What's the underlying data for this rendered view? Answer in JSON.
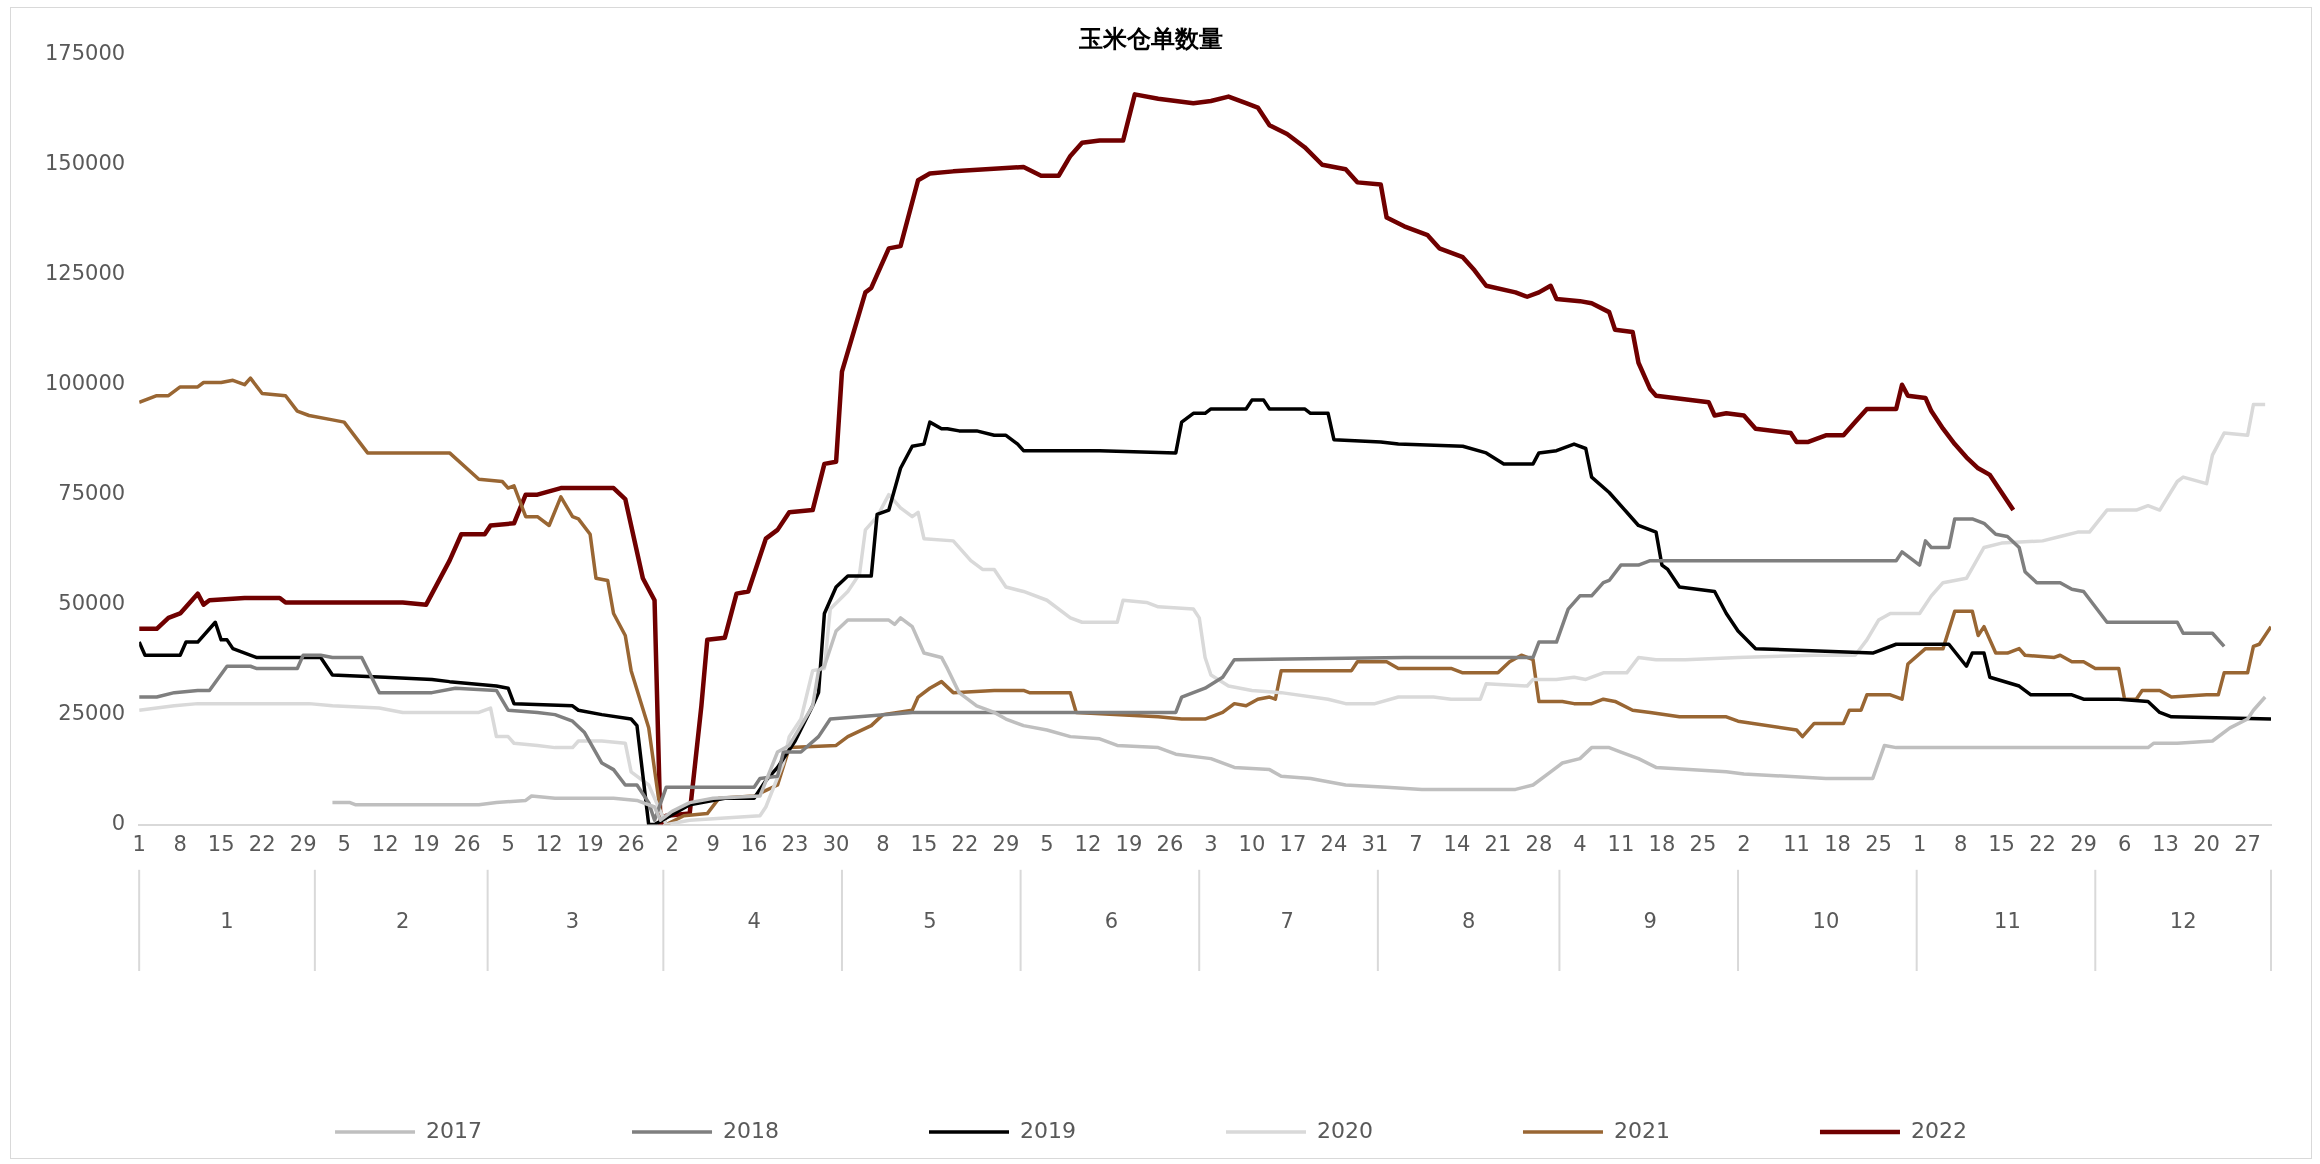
{
  "chart_data": {
    "type": "line",
    "title": "玉米仓单数量",
    "legend": "bottom",
    "grid": false,
    "marker": "none",
    "line_style": "solid",
    "ylim": [
      0,
      175000
    ],
    "yticks": [
      0,
      25000,
      50000,
      75000,
      100000,
      125000,
      150000,
      175000
    ],
    "xlim": [
      "--01-01",
      "--12-31"
    ],
    "xticks": [
      {
        "value": "--01-01",
        "label": "1"
      },
      {
        "value": "--01-08",
        "label": "8"
      },
      {
        "value": "--01-15",
        "label": "15"
      },
      {
        "value": "--01-22",
        "label": "22"
      },
      {
        "value": "--01-29",
        "label": "29"
      },
      {
        "value": "--02-05",
        "label": "5"
      },
      {
        "value": "--02-12",
        "label": "12"
      },
      {
        "value": "--02-19",
        "label": "19"
      },
      {
        "value": "--02-26",
        "label": "26"
      },
      {
        "value": "--03-05",
        "label": "5"
      },
      {
        "value": "--03-12",
        "label": "12"
      },
      {
        "value": "--03-19",
        "label": "19"
      },
      {
        "value": "--03-26",
        "label": "26"
      },
      {
        "value": "--04-02",
        "label": "2"
      },
      {
        "value": "--04-09",
        "label": "9"
      },
      {
        "value": "--04-16",
        "label": "16"
      },
      {
        "value": "--04-23",
        "label": "23"
      },
      {
        "value": "--04-30",
        "label": "30"
      },
      {
        "value": "--05-08",
        "label": "8"
      },
      {
        "value": "--05-15",
        "label": "15"
      },
      {
        "value": "--05-22",
        "label": "22"
      },
      {
        "value": "--05-29",
        "label": "29"
      },
      {
        "value": "--06-05",
        "label": "5"
      },
      {
        "value": "--06-12",
        "label": "12"
      },
      {
        "value": "--06-19",
        "label": "19"
      },
      {
        "value": "--06-26",
        "label": "26"
      },
      {
        "value": "--07-03",
        "label": "3"
      },
      {
        "value": "--07-10",
        "label": "10"
      },
      {
        "value": "--07-17",
        "label": "17"
      },
      {
        "value": "--07-24",
        "label": "24"
      },
      {
        "value": "--07-31",
        "label": "31"
      },
      {
        "value": "--08-07",
        "label": "7"
      },
      {
        "value": "--08-14",
        "label": "14"
      },
      {
        "value": "--08-21",
        "label": "21"
      },
      {
        "value": "--08-28",
        "label": "28"
      },
      {
        "value": "--09-04",
        "label": "4"
      },
      {
        "value": "--09-11",
        "label": "11"
      },
      {
        "value": "--09-18",
        "label": "18"
      },
      {
        "value": "--09-25",
        "label": "25"
      },
      {
        "value": "--10-02",
        "label": "2"
      },
      {
        "value": "--10-11",
        "label": "11"
      },
      {
        "value": "--10-18",
        "label": "18"
      },
      {
        "value": "--10-25",
        "label": "25"
      },
      {
        "value": "--11-01",
        "label": "1"
      },
      {
        "value": "--11-08",
        "label": "8"
      },
      {
        "value": "--11-15",
        "label": "15"
      },
      {
        "value": "--11-22",
        "label": "22"
      },
      {
        "value": "--11-29",
        "label": "29"
      },
      {
        "value": "--12-06",
        "label": "6"
      },
      {
        "value": "--12-13",
        "label": "13"
      },
      {
        "value": "--12-20",
        "label": "20"
      },
      {
        "value": "--12-27",
        "label": "27"
      }
    ],
    "x2lim": [
      "--01-01",
      "--12-31"
    ],
    "x2ticks": [
      {
        "value": "--01-16",
        "label": "1"
      },
      {
        "value": "--02-15",
        "label": "2"
      },
      {
        "value": "--03-16",
        "label": "3"
      },
      {
        "value": "--04-16",
        "label": "4"
      },
      {
        "value": "--05-16",
        "label": "5"
      },
      {
        "value": "--06-16",
        "label": "6"
      },
      {
        "value": "--07-16",
        "label": "7"
      },
      {
        "value": "--08-16",
        "label": "8"
      },
      {
        "value": "--09-16",
        "label": "9"
      },
      {
        "value": "--10-16",
        "label": "10"
      },
      {
        "value": "--11-16",
        "label": "11"
      },
      {
        "value": "--12-16",
        "label": "12"
      }
    ],
    "series": [
      {
        "name": "2017",
        "color": "#bfbfbf",
        "x": [
          "--02-03",
          "--02-06",
          "--02-07",
          "--02-28",
          "--03-03",
          "--03-08",
          "--03-09",
          "--03-13",
          "--03-23",
          "--03-27",
          "--03-30",
          "--03-31",
          "--04-02",
          "--04-05",
          "--04-09",
          "--04-17",
          "--04-20",
          "--04-22",
          "--04-26",
          "--04-27",
          "--04-28",
          "--04-30",
          "--05-02",
          "--05-09",
          "--05-10",
          "--05-11",
          "--05-13",
          "--05-15",
          "--05-18",
          "--05-19",
          "--05-21",
          "--05-24",
          "--05-27",
          "--05-29",
          "--06-01",
          "--06-05",
          "--06-09",
          "--06-14",
          "--06-17",
          "--06-24",
          "--06-27",
          "--07-03",
          "--07-07",
          "--07-13",
          "--07-15",
          "--07-20",
          "--07-26",
          "--08-02",
          "--08-08",
          "--08-24",
          "--08-27",
          "--08-30",
          "--09-01",
          "--09-04",
          "--09-06",
          "--09-09",
          "--09-11",
          "--09-14",
          "--09-17",
          "--09-29",
          "--10-02",
          "--10-16",
          "--10-24",
          "--10-26",
          "--10-28",
          "--12-10",
          "--12-11",
          "--12-15",
          "--12-21",
          "--12-24",
          "--12-27",
          "--12-28",
          "--12-30"
        ],
        "values": [
          5000,
          5000,
          4500,
          4500,
          5000,
          5500,
          6500,
          6000,
          6000,
          5500,
          4000,
          1000,
          3000,
          5000,
          6000,
          6500,
          16500,
          18000,
          27000,
          35000,
          36000,
          44000,
          46500,
          46500,
          45500,
          47000,
          45000,
          39000,
          38000,
          35500,
          30000,
          27000,
          25500,
          24000,
          22500,
          21500,
          20000,
          19500,
          18000,
          17500,
          16000,
          15000,
          13000,
          12500,
          11000,
          10500,
          9000,
          8500,
          8000,
          8000,
          9000,
          12000,
          14000,
          15000,
          17500,
          17500,
          16500,
          15000,
          13000,
          12000,
          11500,
          10500,
          10500,
          18000,
          17500,
          17500,
          18500,
          18500,
          19000,
          22000,
          24000,
          26000,
          29000
        ]
      },
      {
        "name": "2018",
        "color": "#7f7f7f",
        "x": [
          "--01-01",
          "--01-04",
          "--01-07",
          "--01-11",
          "--01-13",
          "--01-16",
          "--01-20",
          "--01-21",
          "--01-28",
          "--01-29",
          "--02-01",
          "--02-03",
          "--02-08",
          "--02-11",
          "--02-20",
          "--02-24",
          "--03-03",
          "--03-05",
          "--03-10",
          "--03-13",
          "--03-16",
          "--03-18",
          "--03-21",
          "--03-23",
          "--03-25",
          "--03-27",
          "--03-29",
          "--03-30",
          "--04-01",
          "--04-16",
          "--04-17",
          "--04-20",
          "--04-21",
          "--04-24",
          "--04-27",
          "--04-29",
          "--05-13",
          "--05-29",
          "--06-27",
          "--06-28",
          "--07-02",
          "--07-05",
          "--07-07",
          "--08-05",
          "--08-27",
          "--08-28",
          "--08-31",
          "--09-02",
          "--09-04",
          "--09-06",
          "--09-08",
          "--09-09",
          "--09-11",
          "--09-14",
          "--09-16",
          "--10-28",
          "--10-29",
          "--11-01",
          "--11-02",
          "--11-03",
          "--11-06",
          "--11-07",
          "--11-10",
          "--11-12",
          "--11-14",
          "--11-16",
          "--11-18",
          "--11-19",
          "--11-21",
          "--11-25",
          "--11-27",
          "--11-29",
          "--12-03",
          "--12-15",
          "--12-16",
          "--12-21",
          "--12-23"
        ],
        "values": [
          29000,
          29000,
          30000,
          30500,
          30500,
          36000,
          36000,
          35500,
          35500,
          38500,
          38500,
          38000,
          38000,
          30000,
          30000,
          31000,
          30500,
          26000,
          25500,
          25000,
          23500,
          21000,
          14000,
          12500,
          9000,
          9000,
          5000,
          1000,
          8500,
          8500,
          10500,
          11000,
          16500,
          16500,
          20000,
          24000,
          25500,
          25500,
          25500,
          29000,
          31000,
          33500,
          37500,
          38000,
          38000,
          41500,
          41500,
          49000,
          52000,
          52000,
          55000,
          55500,
          59000,
          59000,
          60000,
          60000,
          62000,
          59000,
          64500,
          63000,
          63000,
          69500,
          69500,
          68500,
          66000,
          65500,
          63000,
          57500,
          55000,
          55000,
          53500,
          53000,
          46000,
          46000,
          43500,
          43500,
          40500
        ]
      },
      {
        "name": "2019",
        "color": "#000000",
        "x": [
          "--01-01",
          "--01-02",
          "--01-04",
          "--01-08",
          "--01-09",
          "--01-11",
          "--01-14",
          "--01-15",
          "--01-16",
          "--01-17",
          "--01-21",
          "--02-01",
          "--02-03",
          "--02-12",
          "--02-20",
          "--02-23",
          "--03-03",
          "--03-05",
          "--03-06",
          "--03-16",
          "--03-17",
          "--03-21",
          "--03-26",
          "--03-27",
          "--03-29",
          "--03-30",
          "--04-05",
          "--04-11",
          "--04-16",
          "--04-18",
          "--04-20",
          "--04-23",
          "--04-26",
          "--04-27",
          "--04-28",
          "--04-30",
          "--05-02",
          "--05-06",
          "--05-07",
          "--05-09",
          "--05-11",
          "--05-13",
          "--05-15",
          "--05-16",
          "--05-18",
          "--05-19",
          "--05-21",
          "--05-24",
          "--05-27",
          "--05-29",
          "--05-31",
          "--06-01",
          "--06-14",
          "--06-27",
          "--06-28",
          "--06-30",
          "--07-02",
          "--07-03",
          "--07-09",
          "--07-10",
          "--07-12",
          "--07-13",
          "--07-19",
          "--07-20",
          "--07-23",
          "--07-24",
          "--08-01",
          "--08-04",
          "--08-15",
          "--08-19",
          "--08-22",
          "--08-27",
          "--08-28",
          "--08-31",
          "--09-03",
          "--09-05",
          "--09-06",
          "--09-09",
          "--09-12",
          "--09-14",
          "--09-17",
          "--09-18",
          "--09-19",
          "--09-21",
          "--09-27",
          "--09-29",
          "--10-01",
          "--10-04",
          "--10-24",
          "--10-28",
          "--11-06",
          "--11-09",
          "--11-10",
          "--11-12",
          "--11-13",
          "--11-18",
          "--11-20",
          "--11-27",
          "--11-29",
          "--12-05",
          "--12-10",
          "--12-12",
          "--12-14",
          "--12-31"
        ],
        "values": [
          41500,
          38500,
          38500,
          38500,
          41500,
          41500,
          46000,
          42000,
          42000,
          40000,
          38000,
          38000,
          34000,
          33500,
          33000,
          32500,
          31500,
          31000,
          27500,
          27000,
          26000,
          25000,
          24000,
          22500,
          0,
          0,
          4500,
          6000,
          6000,
          10000,
          13000,
          19000,
          27000,
          30000,
          48000,
          54000,
          56500,
          56500,
          70500,
          71500,
          81000,
          86000,
          86500,
          91500,
          90000,
          90000,
          89500,
          89500,
          88500,
          88500,
          86500,
          85000,
          85000,
          84500,
          91500,
          93500,
          93500,
          94500,
          94500,
          96500,
          96500,
          94500,
          94500,
          93500,
          93500,
          87500,
          87000,
          86500,
          86000,
          84500,
          82000,
          82000,
          84500,
          85000,
          86500,
          85500,
          79000,
          75500,
          71000,
          68000,
          66500,
          59000,
          58000,
          54000,
          53000,
          48000,
          44000,
          40000,
          39000,
          41000,
          41000,
          36000,
          39000,
          39000,
          33500,
          31500,
          29500,
          29500,
          28500,
          28500,
          28000,
          25500,
          24500,
          24000
        ]
      },
      {
        "name": "2020",
        "color": "#d9d9d9",
        "x": [
          "--01-01",
          "--01-04",
          "--01-07",
          "--01-11",
          "--01-30",
          "--02-03",
          "--02-11",
          "--02-15",
          "--02-28",
          "--03-02",
          "--03-03",
          "--03-05",
          "--03-06",
          "--03-10",
          "--03-13",
          "--03-16",
          "--03-17",
          "--03-21",
          "--03-25",
          "--03-26",
          "--03-29",
          "--03-31",
          "--04-01",
          "--04-05",
          "--04-17",
          "--04-18",
          "--04-21",
          "--04-22",
          "--04-24",
          "--04-26",
          "--04-28",
          "--04-29",
          "--05-02",
          "--05-04",
          "--05-05",
          "--05-07",
          "--05-09",
          "--05-11",
          "--05-13",
          "--05-14",
          "--05-15",
          "--05-20",
          "--05-23",
          "--05-25",
          "--05-27",
          "--05-29",
          "--06-01",
          "--06-05",
          "--06-09",
          "--06-11",
          "--06-17",
          "--06-18",
          "--06-22",
          "--06-24",
          "--06-30",
          "--07-01",
          "--07-02",
          "--07-03",
          "--07-06",
          "--07-10",
          "--07-15",
          "--07-23",
          "--07-26",
          "--07-31",
          "--08-04",
          "--08-10",
          "--08-13",
          "--08-18",
          "--08-19",
          "--08-26",
          "--08-27",
          "--08-31",
          "--09-03",
          "--09-05",
          "--09-08",
          "--09-12",
          "--09-14",
          "--09-17",
          "--09-22",
          "--10-01",
          "--10-14",
          "--10-21",
          "--10-23",
          "--10-25",
          "--10-27",
          "--11-01",
          "--11-03",
          "--11-05",
          "--11-09",
          "--11-12",
          "--11-15",
          "--11-22",
          "--11-25",
          "--11-28",
          "--11-30",
          "--12-03",
          "--12-08",
          "--12-10",
          "--12-12",
          "--12-15",
          "--12-16",
          "--12-20",
          "--12-21",
          "--12-23",
          "--12-27",
          "--12-28",
          "--12-30"
        ],
        "values": [
          26000,
          26500,
          27000,
          27500,
          27500,
          27000,
          26500,
          25500,
          25500,
          26500,
          20000,
          20000,
          18500,
          18000,
          17500,
          17500,
          19000,
          19000,
          18500,
          12000,
          9000,
          3000,
          0,
          1000,
          2000,
          4000,
          14000,
          20000,
          24000,
          35000,
          35500,
          49000,
          53000,
          57000,
          67000,
          70000,
          75000,
          72000,
          70000,
          71000,
          65000,
          64500,
          60000,
          58000,
          58000,
          54000,
          53000,
          51000,
          47000,
          46000,
          46000,
          51000,
          50500,
          49500,
          49000,
          47000,
          38000,
          34000,
          31500,
          30500,
          30000,
          28500,
          27500,
          27500,
          29000,
          29000,
          28500,
          28500,
          32000,
          31500,
          33000,
          33000,
          33500,
          33000,
          34500,
          34500,
          38000,
          37500,
          37500,
          38000,
          38500,
          38500,
          42000,
          46500,
          48000,
          48000,
          52000,
          55000,
          56000,
          63000,
          64000,
          64500,
          65500,
          66500,
          66500,
          71500,
          71500,
          72500,
          71500,
          78000,
          79000,
          77500,
          84000,
          89000,
          88500,
          95500,
          95500
        ]
      },
      {
        "name": "2021",
        "color": "#996633",
        "x": [
          "--01-01",
          "--01-04",
          "--01-06",
          "--01-08",
          "--01-11",
          "--01-12",
          "--01-15",
          "--01-17",
          "--01-19",
          "--01-20",
          "--01-22",
          "--01-26",
          "--01-28",
          "--01-30",
          "--02-03",
          "--02-05",
          "--02-09",
          "--02-23",
          "--02-28",
          "--03-04",
          "--03-05",
          "--03-06",
          "--03-08",
          "--03-10",
          "--03-12",
          "--03-14",
          "--03-16",
          "--03-17",
          "--03-19",
          "--03-20",
          "--03-22",
          "--03-23",
          "--03-25",
          "--03-26",
          "--03-29",
          "--03-31",
          "--04-01",
          "--04-04",
          "--04-08",
          "--04-10",
          "--04-16",
          "--04-20",
          "--04-22",
          "--04-30",
          "--05-02",
          "--05-06",
          "--05-08",
          "--05-13",
          "--05-14",
          "--05-16",
          "--05-18",
          "--05-20",
          "--05-27",
          "--06-01",
          "--06-02",
          "--06-09",
          "--06-10",
          "--06-24",
          "--06-28",
          "--07-02",
          "--07-05",
          "--07-07",
          "--07-09",
          "--07-11",
          "--07-13",
          "--07-14",
          "--07-15",
          "--07-22",
          "--07-27",
          "--07-28",
          "--08-02",
          "--08-04",
          "--08-13",
          "--08-15",
          "--08-21",
          "--08-23",
          "--08-25",
          "--08-27",
          "--08-28",
          "--09-01",
          "--09-03",
          "--09-06",
          "--09-08",
          "--09-10",
          "--09-13",
          "--09-16",
          "--09-21",
          "--09-29",
          "--10-01",
          "--10-11",
          "--10-12",
          "--10-14",
          "--10-19",
          "--10-20",
          "--10-22",
          "--10-23",
          "--10-27",
          "--10-29",
          "--10-30",
          "--11-02",
          "--11-05",
          "--11-07",
          "--11-10",
          "--11-11",
          "--11-12",
          "--11-14",
          "--11-16",
          "--11-18",
          "--11-19",
          "--11-24",
          "--11-25",
          "--11-27",
          "--11-29",
          "--12-01",
          "--12-05",
          "--12-06",
          "--12-08",
          "--12-09",
          "--12-12",
          "--12-14",
          "--12-20",
          "--12-22",
          "--12-23",
          "--12-27",
          "--12-28",
          "--12-29",
          "--12-31"
        ],
        "values": [
          96000,
          97500,
          97500,
          99500,
          99500,
          100500,
          100500,
          101000,
          100000,
          101500,
          98000,
          97500,
          94000,
          93000,
          92000,
          91500,
          84500,
          84500,
          78500,
          78000,
          76500,
          77000,
          70000,
          70000,
          68000,
          74500,
          70000,
          69500,
          66000,
          56000,
          55500,
          48000,
          43000,
          35000,
          22000,
          3000,
          0,
          2000,
          2500,
          6000,
          6500,
          9000,
          17500,
          18000,
          20000,
          22500,
          25000,
          26000,
          29000,
          31000,
          32500,
          30000,
          30500,
          30500,
          30000,
          30000,
          25500,
          24500,
          24000,
          24000,
          25500,
          27500,
          27000,
          28500,
          29000,
          28500,
          35000,
          35000,
          35000,
          37000,
          37000,
          35500,
          35500,
          34500,
          34500,
          37000,
          38500,
          37500,
          28000,
          28000,
          27500,
          27500,
          28500,
          28000,
          26000,
          25500,
          24500,
          24500,
          23500,
          21500,
          20000,
          23000,
          23000,
          26000,
          26000,
          29500,
          29500,
          28500,
          36500,
          40000,
          40000,
          48500,
          48500,
          43000,
          45000,
          39000,
          39000,
          40000,
          38500,
          38000,
          38500,
          37000,
          37000,
          35500,
          35500,
          28500,
          28500,
          30500,
          30500,
          29000,
          29500,
          29500,
          34500,
          34500,
          40500,
          41000,
          45000
        ]
      },
      {
        "name": "2022",
        "color": "#700000",
        "x": [
          "--01-01",
          "--01-04",
          "--01-06",
          "--01-08",
          "--01-11",
          "--01-12",
          "--01-13",
          "--01-19",
          "--01-25",
          "--01-26",
          "--02-15",
          "--02-19",
          "--02-21",
          "--02-23",
          "--02-25",
          "--03-01",
          "--03-02",
          "--03-06",
          "--03-08",
          "--03-10",
          "--03-14",
          "--03-23",
          "--03-25",
          "--03-28",
          "--03-30",
          "--03-31",
          "--04-01",
          "--04-05",
          "--04-07",
          "--04-08",
          "--04-11",
          "--04-13",
          "--04-15",
          "--04-18",
          "--04-20",
          "--04-22",
          "--04-26",
          "--04-28",
          "--04-30",
          "--05-01",
          "--05-05",
          "--05-06",
          "--05-09",
          "--05-11",
          "--05-14",
          "--05-16",
          "--05-20",
          "--06-01",
          "--06-04",
          "--06-07",
          "--06-09",
          "--06-11",
          "--06-14",
          "--06-18",
          "--06-20",
          "--06-24",
          "--06-30",
          "--07-03",
          "--07-06",
          "--07-09",
          "--07-11",
          "--07-13",
          "--07-16",
          "--07-19",
          "--07-22",
          "--07-26",
          "--07-28",
          "--08-01",
          "--08-02",
          "--08-05",
          "--08-09",
          "--08-11",
          "--08-15",
          "--08-17",
          "--08-19",
          "--08-24",
          "--08-26",
          "--08-28",
          "--08-30",
          "--08-31",
          "--09-04",
          "--09-06",
          "--09-09",
          "--09-10",
          "--09-13",
          "--09-14",
          "--09-16",
          "--09-17",
          "--09-26",
          "--09-27",
          "--09-29",
          "--10-02",
          "--10-04",
          "--10-10",
          "--10-11",
          "--10-13",
          "--10-16",
          "--10-19",
          "--10-21",
          "--10-23",
          "--10-28",
          "--10-29",
          "--10-30",
          "--11-02",
          "--11-03",
          "--11-05",
          "--11-07",
          "--11-09",
          "--11-11",
          "--11-13",
          "--11-15",
          "--11-17"
        ],
        "values": [
          44500,
          44500,
          47000,
          48000,
          52500,
          50000,
          51000,
          51500,
          51500,
          50500,
          50500,
          50000,
          55000,
          60000,
          66000,
          66000,
          68000,
          68500,
          75000,
          75000,
          76500,
          76500,
          74000,
          56000,
          51000,
          0,
          2000,
          2500,
          27000,
          42000,
          42500,
          52500,
          53000,
          65000,
          67000,
          71000,
          71500,
          82000,
          82500,
          103000,
          121000,
          122000,
          131000,
          131500,
          146500,
          148000,
          148500,
          149500,
          147500,
          147500,
          152000,
          155000,
          155500,
          155500,
          166000,
          165000,
          164000,
          164500,
          165500,
          164000,
          163000,
          159000,
          157000,
          154000,
          150000,
          149000,
          146000,
          145500,
          138000,
          136000,
          134000,
          131000,
          129000,
          126000,
          122500,
          121000,
          120000,
          121000,
          122500,
          119500,
          119000,
          118500,
          116500,
          112500,
          112000,
          105000,
          99000,
          97500,
          96000,
          93000,
          93500,
          93000,
          90000,
          89000,
          87000,
          87000,
          88500,
          88500,
          91500,
          94500,
          94500,
          100000,
          97500,
          97000,
          94000,
          90000,
          86500,
          83500,
          81000,
          79500,
          75500,
          71500
        ]
      }
    ]
  }
}
